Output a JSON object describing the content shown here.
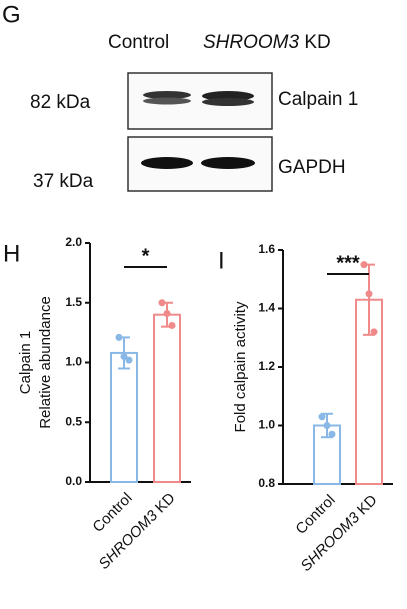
{
  "blot": {
    "panel": "G",
    "lanes": [
      "Control",
      [
        "SHROOM3",
        "KD"
      ]
    ],
    "rows": [
      {
        "size": "82 kDa",
        "protein": "Calpain 1"
      },
      {
        "size": "37 kDa",
        "protein": "GAPDH"
      }
    ]
  },
  "chart_data": [
    {
      "type": "bar",
      "panel": "H",
      "ylabel": [
        "Calpain 1",
        "Relative abundance"
      ],
      "categories": [
        "Control",
        [
          "SHROOM3",
          "KD"
        ]
      ],
      "values": [
        1.08,
        1.4
      ],
      "errors": [
        0.13,
        0.1
      ],
      "points": [
        [
          1.21,
          1.05,
          1.02
        ],
        [
          1.5,
          1.41,
          1.31
        ]
      ],
      "colors": [
        "#8ab8e6",
        "#f08a8a"
      ],
      "ylim": [
        0,
        2
      ],
      "yticks": [
        {
          "value": 0,
          "label": "0.0"
        },
        {
          "value": 0.5,
          "label": "0.5"
        },
        {
          "value": 1,
          "label": "1.0"
        },
        {
          "value": 1.5,
          "label": "1.5"
        },
        {
          "value": 2,
          "label": "2.0"
        }
      ],
      "significance": "*"
    },
    {
      "type": "bar",
      "panel": "I",
      "ylabel": [
        "Fold calpain activity"
      ],
      "categories": [
        "Control",
        [
          "SHROOM3",
          "KD"
        ]
      ],
      "values": [
        1.0,
        1.43
      ],
      "errors": [
        0.04,
        0.12
      ],
      "points": [
        [
          1.03,
          1.0,
          0.97
        ],
        [
          1.55,
          1.45,
          1.32
        ]
      ],
      "colors": [
        "#8ab8e6",
        "#f08a8a"
      ],
      "ylim": [
        0.8,
        1.6
      ],
      "yticks": [
        {
          "value": 0.8,
          "label": "0.8"
        },
        {
          "value": 1,
          "label": "1.0"
        },
        {
          "value": 1.2,
          "label": "1.2"
        },
        {
          "value": 1.4,
          "label": "1.4"
        },
        {
          "value": 1.6,
          "label": "1.6"
        }
      ],
      "significance": "***"
    }
  ]
}
